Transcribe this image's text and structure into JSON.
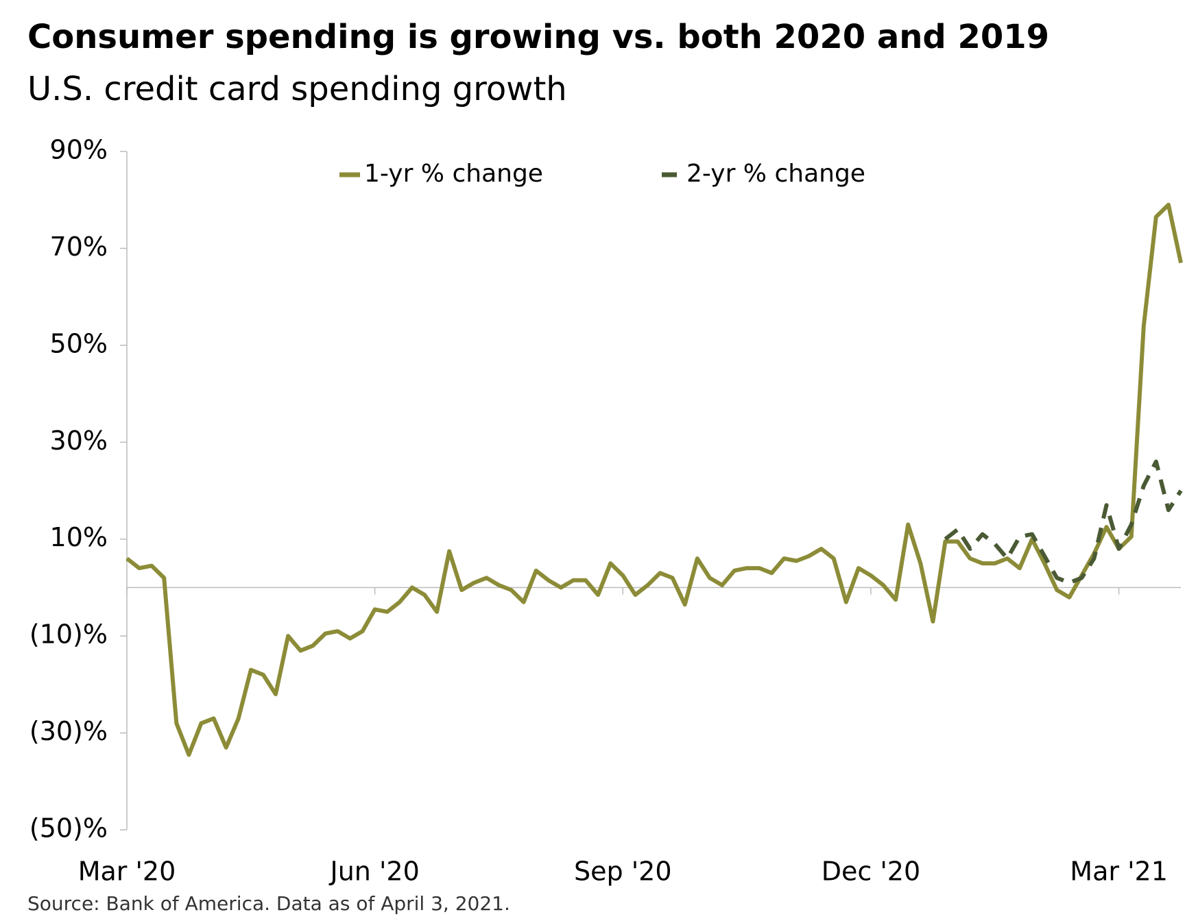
{
  "chart_data": {
    "type": "line",
    "title": "Consumer spending is growing vs. both 2020 and 2019",
    "subtitle": "U.S. credit card spending growth",
    "source": "Source: Bank of America. Data as of April 3, 2021.",
    "categories": [
      "Mar '20",
      null,
      null,
      null,
      null,
      null,
      null,
      null,
      null,
      null,
      null,
      null,
      null,
      null,
      null,
      null,
      null,
      null,
      null,
      null,
      "Jun '20",
      null,
      null,
      null,
      null,
      null,
      null,
      null,
      null,
      null,
      null,
      null,
      null,
      null,
      null,
      null,
      null,
      null,
      null,
      null,
      "Sep '20",
      null,
      null,
      null,
      null,
      null,
      null,
      null,
      null,
      null,
      null,
      null,
      null,
      null,
      null,
      null,
      null,
      null,
      null,
      null,
      "Dec '20",
      null,
      null,
      null,
      null,
      null,
      null,
      null,
      null,
      null,
      null,
      null,
      null,
      null,
      null,
      null,
      null,
      null,
      null,
      null,
      "Mar '21",
      null,
      null,
      null,
      null,
      null
    ],
    "series": [
      {
        "name": "1-yr % change",
        "color": "#8c8c38",
        "style": "solid",
        "values": [
          6,
          4,
          4.5,
          2,
          -28,
          -34.5,
          -28,
          -27,
          -33,
          -27,
          -17,
          -18,
          -22,
          -10,
          -13,
          -12,
          -9.5,
          -9,
          -10.5,
          -9,
          -4.5,
          -5,
          -3,
          0,
          -1.5,
          -5,
          7.5,
          -0.5,
          1,
          2,
          0.5,
          -0.5,
          -3,
          3.5,
          1.5,
          0,
          1.5,
          1.5,
          -1.5,
          5,
          2.5,
          -1.5,
          0.5,
          3,
          2,
          -3.5,
          6,
          2,
          0.5,
          3.5,
          4,
          4,
          3,
          6,
          5.5,
          6.5,
          8,
          6,
          -3,
          4,
          2.5,
          0.5,
          -2.5,
          13,
          5,
          -7,
          9.5,
          9.5,
          6,
          5,
          5,
          6,
          4,
          10,
          5,
          -0.5,
          -2,
          2.5,
          7,
          12.5,
          8,
          10.5,
          54,
          76.5,
          79,
          67
        ]
      },
      {
        "name": "2-yr % change",
        "color": "#4a5a34",
        "style": "dashed",
        "values": [
          null,
          null,
          null,
          null,
          null,
          null,
          null,
          null,
          null,
          null,
          null,
          null,
          null,
          null,
          null,
          null,
          null,
          null,
          null,
          null,
          null,
          null,
          null,
          null,
          null,
          null,
          null,
          null,
          null,
          null,
          null,
          null,
          null,
          null,
          null,
          null,
          null,
          null,
          null,
          null,
          null,
          null,
          null,
          null,
          null,
          null,
          null,
          null,
          null,
          null,
          null,
          null,
          null,
          null,
          null,
          null,
          null,
          null,
          null,
          null,
          null,
          null,
          null,
          null,
          null,
          null,
          10,
          12,
          8,
          11,
          9,
          6,
          10.5,
          11,
          6.5,
          2,
          1,
          2,
          6,
          17,
          8,
          13,
          21,
          26,
          16,
          20
        ]
      }
    ],
    "ylim": [
      -50,
      90
    ],
    "yticks": [
      {
        "value": 90,
        "label": "90%"
      },
      {
        "value": 70,
        "label": "70%"
      },
      {
        "value": 50,
        "label": "50%"
      },
      {
        "value": 30,
        "label": "30%"
      },
      {
        "value": 10,
        "label": "10%"
      },
      {
        "value": -10,
        "label": "(10)%"
      },
      {
        "value": -30,
        "label": "(30)%"
      },
      {
        "value": -50,
        "label": "(50)%"
      }
    ],
    "grid": false,
    "legend": "top"
  }
}
